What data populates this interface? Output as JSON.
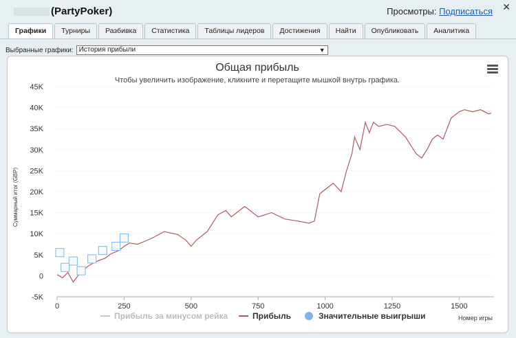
{
  "header": {
    "player_name": "(PartyPoker)",
    "views_label": "Просмотры:",
    "subscribe_link": "Подписаться",
    "close_glyph": "✕"
  },
  "tabs": [
    {
      "label": "Графики",
      "active": true
    },
    {
      "label": "Турниры"
    },
    {
      "label": "Разбивка"
    },
    {
      "label": "Статистика"
    },
    {
      "label": "Таблицы лидеров"
    },
    {
      "label": "Достижения"
    },
    {
      "label": "Найти"
    },
    {
      "label": "Опубликовать"
    },
    {
      "label": "Аналитика"
    }
  ],
  "selector": {
    "label": "Выбранные графики:",
    "value": "История прибыли"
  },
  "icons": {
    "menu": "hamburger-menu-icon",
    "dropdown": "chevron-down-icon"
  },
  "colors": {
    "profit_line": "#b05a5a",
    "rake_line": "#c8c8c8",
    "big_wins": "#7cb5ec",
    "grid": "#e0e0e0"
  },
  "chart_data": {
    "type": "line",
    "title": "Общая прибыль",
    "subtitle": "Чтобы увеличить изображение, кликните и перетащите мышкой внутрь графика.",
    "xlabel": "Номер игры",
    "ylabel": "Суммарный итог (GBP)",
    "xlim": [
      0,
      1630
    ],
    "ylim": [
      -5000,
      45000
    ],
    "x_ticks": [
      0,
      250,
      500,
      750,
      1000,
      1250,
      1500
    ],
    "y_ticks": [
      -5000,
      0,
      5000,
      10000,
      15000,
      20000,
      25000,
      30000,
      35000,
      40000,
      45000
    ],
    "y_tick_labels": [
      "-5K",
      "0",
      "5K",
      "10K",
      "15K",
      "20K",
      "25K",
      "30K",
      "35K",
      "40K",
      "45K"
    ],
    "grid": true,
    "legend_position": "bottom",
    "series": [
      {
        "name": "Прибыль за минусом рейка",
        "color": "#c8c8c8",
        "x": [],
        "y": []
      },
      {
        "name": "Прибыль",
        "color": "#b05a5a",
        "x": [
          0,
          20,
          40,
          60,
          80,
          100,
          120,
          150,
          180,
          200,
          230,
          250,
          270,
          300,
          350,
          400,
          450,
          480,
          500,
          520,
          560,
          600,
          630,
          650,
          690,
          700,
          750,
          800,
          850,
          900,
          940,
          960,
          980,
          1000,
          1030,
          1060,
          1080,
          1100,
          1110,
          1130,
          1150,
          1165,
          1180,
          1200,
          1230,
          1260,
          1300,
          1320,
          1340,
          1360,
          1380,
          1400,
          1420,
          1440,
          1470,
          1500,
          1520,
          1550,
          1580,
          1610,
          1620
        ],
        "y": [
          300,
          -500,
          800,
          -1500,
          200,
          1500,
          2500,
          3500,
          4200,
          5200,
          6000,
          7000,
          7800,
          7500,
          8800,
          10500,
          9800,
          8500,
          7000,
          8500,
          10500,
          14500,
          15500,
          14000,
          16000,
          16500,
          14000,
          15000,
          13500,
          13000,
          12500,
          13000,
          19500,
          20500,
          22000,
          20000,
          25000,
          29000,
          33000,
          30000,
          36500,
          34000,
          36500,
          35500,
          36000,
          35500,
          33000,
          31000,
          29000,
          28000,
          30000,
          32500,
          33500,
          32500,
          37500,
          39000,
          39500,
          39000,
          39500,
          38500,
          38700
        ]
      },
      {
        "name": "Значительные выигрыши",
        "color": "#7cb5ec",
        "x": [
          10,
          30,
          60,
          90,
          130,
          170,
          220,
          250
        ],
        "y": [
          5500,
          2000,
          3500,
          1200,
          4000,
          6000,
          7000,
          9000
        ]
      }
    ]
  }
}
